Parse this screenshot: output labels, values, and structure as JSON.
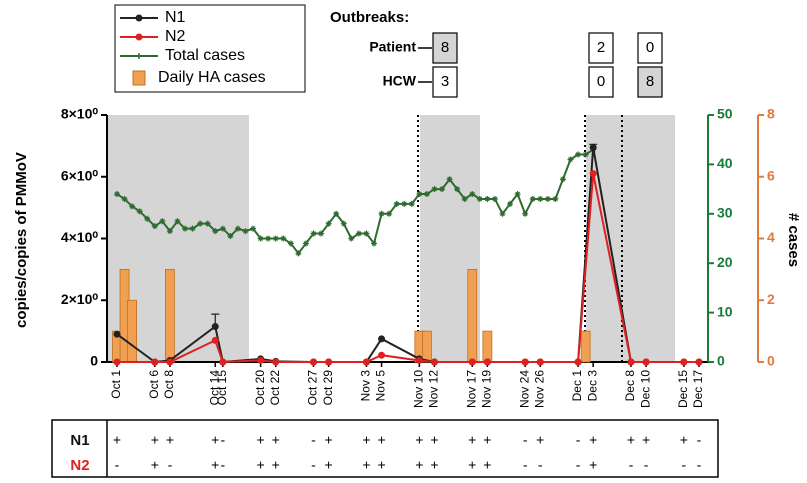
{
  "chart_data": {
    "type": "line",
    "ylabel": "copies/copies of PMMoV",
    "y2label": "# cases",
    "ylim": [
      0,
      8
    ],
    "yticks": [
      0,
      {
        "value": 2,
        "label": "2×10⁰"
      },
      {
        "value": 4,
        "label": "4×10⁰"
      },
      {
        "value": 6,
        "label": "6×10⁰"
      },
      {
        "value": 8,
        "label": "8×10⁰"
      }
    ],
    "y2lim": [
      0,
      50
    ],
    "y2ticks": [
      0,
      10,
      20,
      30,
      40,
      50
    ],
    "y2color": "#1a7a3a",
    "y3lim": [
      0,
      8
    ],
    "y3ticks": [
      0,
      2,
      4,
      6,
      8
    ],
    "y3color": "#e07a40",
    "x": [
      "Oct 1",
      "Oct 6",
      "Oct 8",
      "Oct 14",
      "Oct 15",
      "Oct 20",
      "Oct 22",
      "Oct 27",
      "Oct 29",
      "Nov 3",
      "Nov 5",
      "Nov 10",
      "Nov 12",
      "Nov 17",
      "Nov 19",
      "Nov 24",
      "Nov 26",
      "Dec 1",
      "Dec 3",
      "Dec 8",
      "Dec 10",
      "Dec 15",
      "Dec 17"
    ],
    "series": [
      {
        "name": "N1",
        "type": "line",
        "color": "#222222",
        "values": [
          0.9,
          0,
          0.05,
          1.15,
          0,
          0.1,
          0.02,
          0,
          0,
          0,
          0.75,
          0.1,
          0,
          0,
          0,
          0,
          0,
          0,
          6.95,
          0,
          0,
          0,
          0
        ],
        "errors": [
          null,
          null,
          null,
          0.4,
          null,
          null,
          null,
          null,
          null,
          null,
          null,
          null,
          null,
          null,
          null,
          null,
          null,
          null,
          0.1,
          null,
          null,
          null,
          null
        ]
      },
      {
        "name": "N2",
        "type": "line",
        "color": "#e02020",
        "values": [
          0,
          0,
          0,
          0.7,
          0,
          0.05,
          0,
          0,
          0,
          0,
          0.22,
          0.05,
          0,
          0,
          0,
          0,
          0,
          0,
          6.1,
          0,
          0,
          0,
          0
        ]
      },
      {
        "name": "Total cases",
        "type": "star-line",
        "axis": "y2",
        "color": "#2e6b30",
        "x": [
          "Oct 1",
          "Oct 2",
          "Oct 3",
          "Oct 4",
          "Oct 5",
          "Oct 6",
          "Oct 7",
          "Oct 8",
          "Oct 9",
          "Oct 10",
          "Oct 11",
          "Oct 12",
          "Oct 13",
          "Oct 14",
          "Oct 15",
          "Oct 16",
          "Oct 17",
          "Oct 18",
          "Oct 19",
          "Oct 20",
          "Oct 21",
          "Oct 22",
          "Oct 23",
          "Oct 24",
          "Oct 25",
          "Oct 26",
          "Oct 27",
          "Oct 28",
          "Oct 29",
          "Oct 30",
          "Oct 31",
          "Nov 1",
          "Nov 2",
          "Nov 3",
          "Nov 4",
          "Nov 5",
          "Nov 6",
          "Nov 7",
          "Nov 8",
          "Nov 9",
          "Nov 10",
          "Nov 11",
          "Nov 12",
          "Nov 13",
          "Nov 14",
          "Nov 15",
          "Nov 16",
          "Nov 17",
          "Nov 18",
          "Nov 19",
          "Nov 20",
          "Nov 21",
          "Nov 22",
          "Nov 23",
          "Nov 24",
          "Nov 25",
          "Nov 26",
          "Nov 27",
          "Nov 28",
          "Nov 29",
          "Nov 30",
          "Dec 1",
          "Dec 2",
          "Dec 3"
        ],
        "values": [
          34,
          33,
          31.5,
          30.5,
          29,
          27.5,
          28.5,
          26.5,
          28.5,
          27,
          27,
          28,
          28,
          26.5,
          27,
          25.5,
          27,
          26.5,
          27,
          25,
          25,
          25,
          25,
          24,
          22,
          24,
          26,
          26,
          28,
          30,
          28,
          25,
          26,
          26,
          24,
          30,
          30,
          32,
          32,
          32,
          34,
          34,
          35,
          35,
          37,
          35,
          33,
          34,
          33,
          33,
          33,
          30,
          32,
          34,
          30,
          33,
          33,
          33,
          33,
          37,
          41,
          42,
          42,
          43
        ]
      },
      {
        "name": "Daily HA cases",
        "type": "bar",
        "axis": "y3",
        "color": "#f0a050",
        "x": [
          "Oct 1",
          "Oct 2",
          "Oct 3",
          "Oct 8",
          "Nov 10",
          "Nov 11",
          "Nov 17",
          "Nov 19",
          "Dec 2"
        ],
        "values": [
          1,
          3,
          2,
          3,
          1,
          1,
          3,
          1,
          1
        ]
      }
    ],
    "outbreaks": {
      "title": "Outbreaks:",
      "rows": [
        {
          "label": "Patient",
          "values": [
            8,
            2,
            0
          ]
        },
        {
          "label": "HCW",
          "values": [
            3,
            0,
            8
          ]
        }
      ]
    },
    "detection_table": {
      "rows": [
        {
          "label": "N1",
          "color": "#111111",
          "signs": [
            "+",
            "+",
            "+",
            "+",
            "-",
            "+",
            "+",
            "-",
            "+",
            "+",
            "+",
            "+",
            "+",
            "+",
            "+",
            "-",
            "+",
            "-",
            "+",
            "+",
            "+",
            "+",
            "-"
          ]
        },
        {
          "label": "N2",
          "color": "#e02020",
          "signs": [
            "-",
            "+",
            "-",
            "+",
            "-",
            "+",
            "+",
            "-",
            "+",
            "+",
            "+",
            "+",
            "+",
            "+",
            "+",
            "-",
            "-",
            "-",
            "+",
            "-",
            "-",
            "-",
            "-"
          ]
        }
      ]
    }
  }
}
